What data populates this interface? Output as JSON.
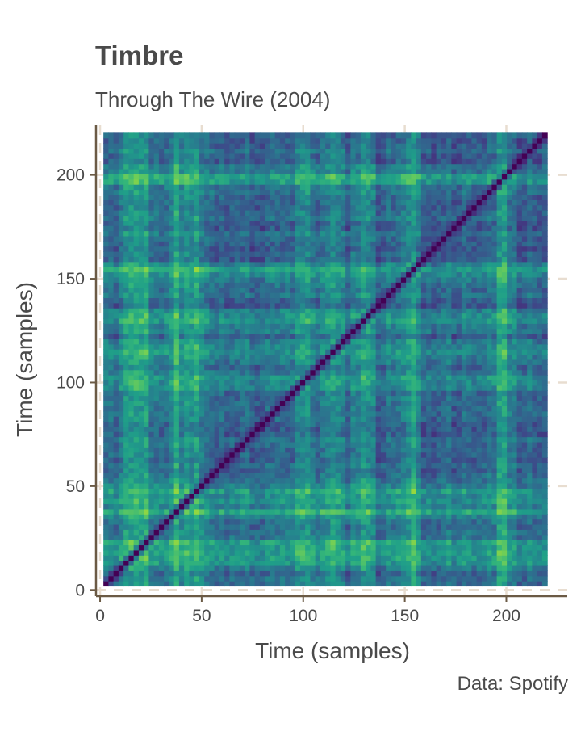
{
  "chart_data": {
    "type": "heatmap",
    "title": "Timbre",
    "subtitle": "Through The Wire (2004)",
    "caption": "Data: Spotify",
    "xlabel": "Time (samples)",
    "ylabel": "Time (samples)",
    "xlim": [
      -2,
      230
    ],
    "ylim": [
      -3,
      224
    ],
    "x_ticks": [
      0,
      50,
      100,
      150,
      200
    ],
    "y_ticks": [
      0,
      50,
      100,
      150,
      200
    ],
    "x_tick_labels": [
      "0",
      "50",
      "100",
      "150",
      "200"
    ],
    "y_tick_labels": [
      "0",
      "50",
      "100",
      "150",
      "200"
    ],
    "n_samples": 88,
    "sample_range": [
      3,
      219
    ],
    "colormap": "viridis",
    "value_meaning": "timbre self-similarity distance (0 on the diagonal, higher = brighter)",
    "bright_sample_bands": [
      15,
      22,
      38,
      48,
      101,
      115,
      130,
      153,
      198
    ],
    "grid": true
  },
  "colors": {
    "axis": "#6b5a45",
    "grid": "#e8ddd0",
    "text": "#4a4a4a"
  }
}
